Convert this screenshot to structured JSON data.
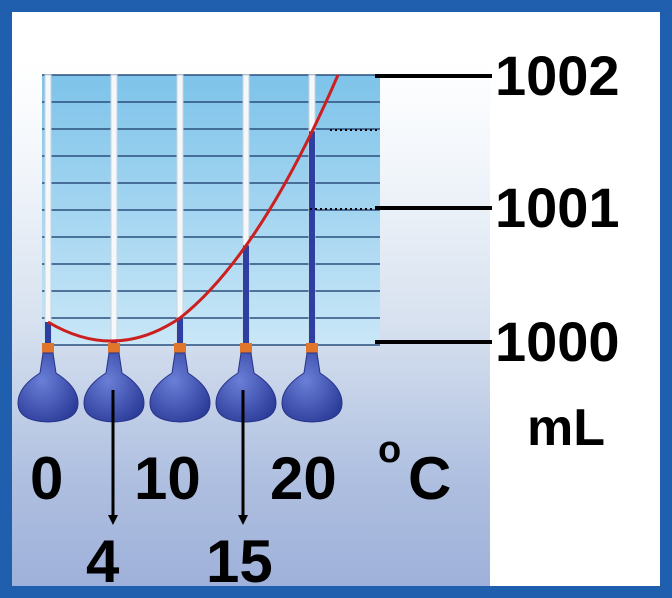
{
  "volume_labels": [
    "1002",
    "1001",
    "1000"
  ],
  "volume_unit": "mL",
  "temperature_labels": [
    "0",
    "10",
    "20"
  ],
  "temperature_unit_degree": "o",
  "temperature_unit_letter": "C",
  "arrow_labels": [
    "4",
    "15"
  ],
  "colors": {
    "frame": "#1f5fae",
    "curve": "#cc1f1f",
    "flask": "#3c4fb0",
    "liquid": "#2d3fa0",
    "grid_line": "#2b4f7d"
  },
  "flasks": [
    {
      "temperature": 0
    },
    {
      "temperature": 4
    },
    {
      "temperature": 10
    },
    {
      "temperature": 15
    },
    {
      "temperature": 20
    }
  ]
}
